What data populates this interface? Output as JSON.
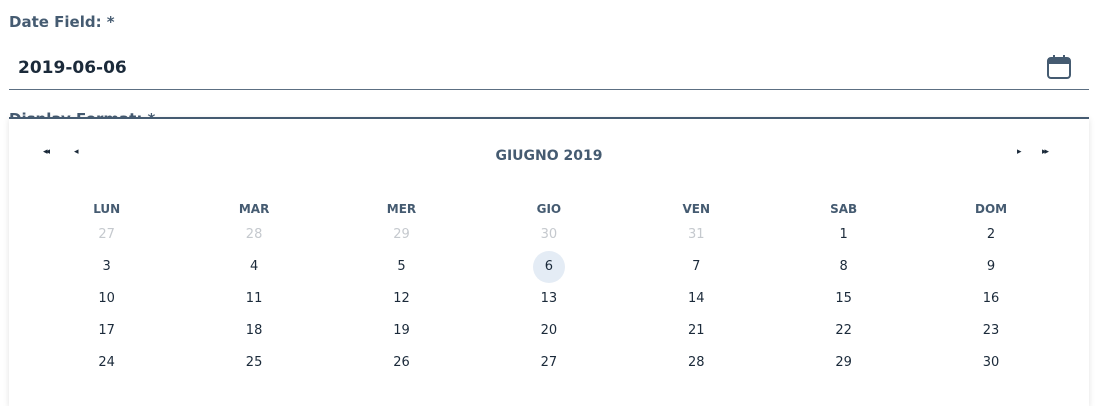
{
  "field": {
    "label": "Date Field: *",
    "value": "2019-06-06",
    "next_label_partial": "Display Format: *"
  },
  "icons": {
    "calendar": "calendar-icon",
    "prev_year": "double-left-arrow-icon",
    "prev_month": "left-arrow-icon",
    "next_month": "right-arrow-icon",
    "next_year": "double-right-arrow-icon"
  },
  "calendar": {
    "month_title": "GIUGNO 2019",
    "prev_year_glyph": "◂◂",
    "prev_month_glyph": "◂",
    "next_month_glyph": "▸",
    "next_year_glyph": "▸▸",
    "weekdays": [
      "LUN",
      "MAR",
      "MER",
      "GIO",
      "VEN",
      "SAB",
      "DOM"
    ],
    "weeks": [
      [
        {
          "d": "27",
          "m": true
        },
        {
          "d": "28",
          "m": true
        },
        {
          "d": "29",
          "m": true
        },
        {
          "d": "30",
          "m": true
        },
        {
          "d": "31",
          "m": true
        },
        {
          "d": "1"
        },
        {
          "d": "2"
        }
      ],
      [
        {
          "d": "3"
        },
        {
          "d": "4"
        },
        {
          "d": "5"
        },
        {
          "d": "6",
          "s": true
        },
        {
          "d": "7"
        },
        {
          "d": "8"
        },
        {
          "d": "9"
        }
      ],
      [
        {
          "d": "10"
        },
        {
          "d": "11"
        },
        {
          "d": "12"
        },
        {
          "d": "13"
        },
        {
          "d": "14"
        },
        {
          "d": "15"
        },
        {
          "d": "16"
        }
      ],
      [
        {
          "d": "17"
        },
        {
          "d": "18"
        },
        {
          "d": "19"
        },
        {
          "d": "20"
        },
        {
          "d": "21"
        },
        {
          "d": "22"
        },
        {
          "d": "23"
        }
      ],
      [
        {
          "d": "24"
        },
        {
          "d": "25"
        },
        {
          "d": "26"
        },
        {
          "d": "27"
        },
        {
          "d": "28"
        },
        {
          "d": "29"
        },
        {
          "d": "30"
        }
      ]
    ],
    "colors": {
      "accent": "#455b71",
      "selected_bg": "#e4ecf5",
      "muted": "#c5c9ce"
    }
  }
}
